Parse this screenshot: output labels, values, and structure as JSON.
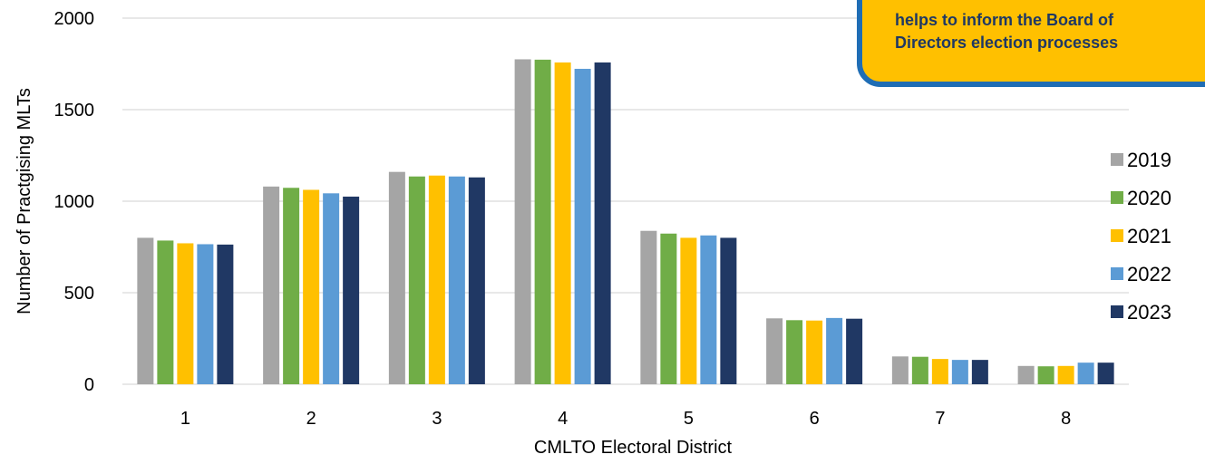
{
  "chart_data": {
    "type": "bar",
    "xlabel": "CMLTO Electoral District",
    "ylabel": "Number of Practgising MLTs",
    "categories": [
      "1",
      "2",
      "3",
      "4",
      "5",
      "6",
      "7",
      "8"
    ],
    "ylim": [
      0,
      2000
    ],
    "yticks": [
      "0",
      "500",
      "1000",
      "1500",
      "2000"
    ],
    "grid": true,
    "legend_position": "right",
    "series": [
      {
        "name": "2019",
        "color": "#a5a5a5",
        "values": [
          800,
          1080,
          1160,
          1775,
          838,
          360,
          152,
          100
        ]
      },
      {
        "name": "2020",
        "color": "#70ad47",
        "values": [
          785,
          1073,
          1135,
          1773,
          823,
          350,
          150,
          98
        ]
      },
      {
        "name": "2021",
        "color": "#ffc000",
        "values": [
          770,
          1062,
          1140,
          1758,
          800,
          348,
          138,
          100
        ]
      },
      {
        "name": "2022",
        "color": "#5b9bd5",
        "values": [
          765,
          1043,
          1135,
          1723,
          813,
          362,
          133,
          118
        ]
      },
      {
        "name": "2023",
        "color": "#203864",
        "values": [
          763,
          1025,
          1130,
          1758,
          800,
          358,
          133,
          118
        ]
      }
    ]
  },
  "callout": {
    "line1": "helps to inform the Board of",
    "line2": "Directors election processes"
  }
}
